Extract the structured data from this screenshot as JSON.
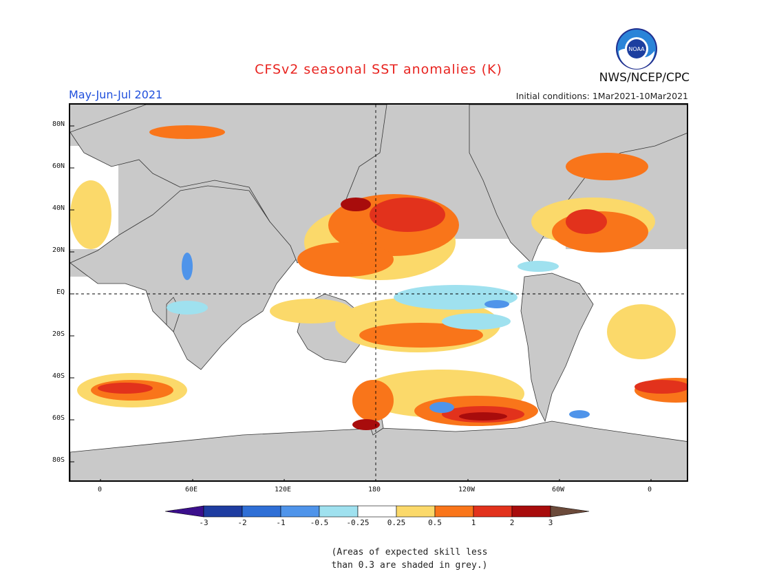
{
  "title": "CFSv2 seasonal SST anomalies (K)",
  "agency": "NWS/NCEP/CPC",
  "logo_text": "NOAA",
  "period": "May-Jun-Jul 2021",
  "initial_conditions": "Initial conditions: 1Mar2021-10Mar2021",
  "lat_labels": [
    "80N",
    "60N",
    "40N",
    "20N",
    "EQ",
    "20S",
    "40S",
    "60S",
    "80S"
  ],
  "lon_labels": [
    "0",
    "60E",
    "120E",
    "180",
    "120W",
    "60W",
    "0"
  ],
  "colorbar": {
    "ticks": [
      "-3",
      "-2",
      "-1",
      "-0.5",
      "-0.25",
      "0.25",
      "0.5",
      "1",
      "2",
      "3"
    ],
    "colors": [
      "#1e3ca0",
      "#2f6fd6",
      "#4f94ea",
      "#9fe1ef",
      "#ffffff",
      "#fbd96a",
      "#f9751a",
      "#e2321c",
      "#a80c0c"
    ],
    "under_color": "#3b0f8c",
    "over_color": "#6b4a3a"
  },
  "colors": {
    "land": "#c9c9c9",
    "ocean_neutral": "#ffffff",
    "grid": "#000000"
  },
  "footnote_line1": "(Areas of expected skill less",
  "footnote_line2": "than 0.3 are shaded in grey.)"
}
